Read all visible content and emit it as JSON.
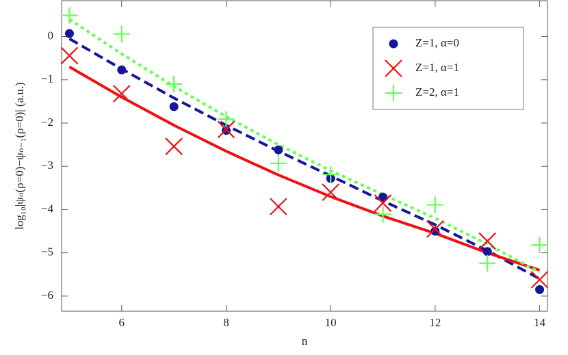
{
  "chart_data": {
    "type": "scatter",
    "x_label": "n",
    "y_label": "log₁₀|ψₙ(ρ=0)−ψₙ₋₁(ρ=0)| (a.u.)",
    "x": [
      5,
      6,
      7,
      8,
      9,
      10,
      11,
      12,
      13,
      14
    ],
    "xlim": [
      4.85,
      14.15
    ],
    "ylim": [
      -6.35,
      0.83
    ],
    "xticks": [
      6,
      8,
      10,
      12,
      14
    ],
    "yticks": [
      {
        "value": 0,
        "label": "0"
      },
      {
        "value": -1,
        "label": "−1"
      },
      {
        "value": -2,
        "label": "−2"
      },
      {
        "value": -3,
        "label": "−3"
      },
      {
        "value": -4,
        "label": "−4"
      },
      {
        "value": -5,
        "label": "−5"
      },
      {
        "value": -6,
        "label": "−6"
      }
    ],
    "legend": "upper right",
    "series": [
      {
        "name": "Z=1, α=0",
        "color": "#16169a",
        "marker": "circle",
        "values": [
          0.07,
          -0.77,
          -1.62,
          -2.17,
          -2.62,
          -3.28,
          -3.71,
          -4.5,
          -4.97,
          -5.85
        ],
        "fit": {
          "dash": "dashed",
          "values": [
            -0.05,
            -0.75,
            -1.42,
            -2.05,
            -2.65,
            -3.22,
            -3.8,
            -4.35,
            -4.95,
            -5.6
          ]
        }
      },
      {
        "name": "Z=1, α=1",
        "color": "#ee1111",
        "marker": "cross",
        "values": [
          -0.44,
          -1.32,
          -2.54,
          -2.15,
          -3.93,
          -3.6,
          -3.85,
          -4.45,
          -4.73,
          -5.62
        ],
        "fit": {
          "dash": "solid",
          "values": [
            -0.7,
            -1.4,
            -2.05,
            -2.65,
            -3.2,
            -3.7,
            -4.15,
            -4.55,
            -5.0,
            -5.4
          ]
        }
      },
      {
        "name": "Z=2, α=1",
        "color": "#66ff55",
        "marker": "plus",
        "values": [
          0.49,
          0.06,
          -1.1,
          -1.91,
          -2.93,
          -3.19,
          -4.11,
          -3.89,
          -5.24,
          -4.82
        ],
        "fit": {
          "dash": "dotted",
          "values": [
            0.4,
            -0.4,
            -1.15,
            -1.85,
            -2.5,
            -3.1,
            -3.65,
            -4.2,
            -4.8,
            -5.45
          ]
        }
      }
    ]
  }
}
